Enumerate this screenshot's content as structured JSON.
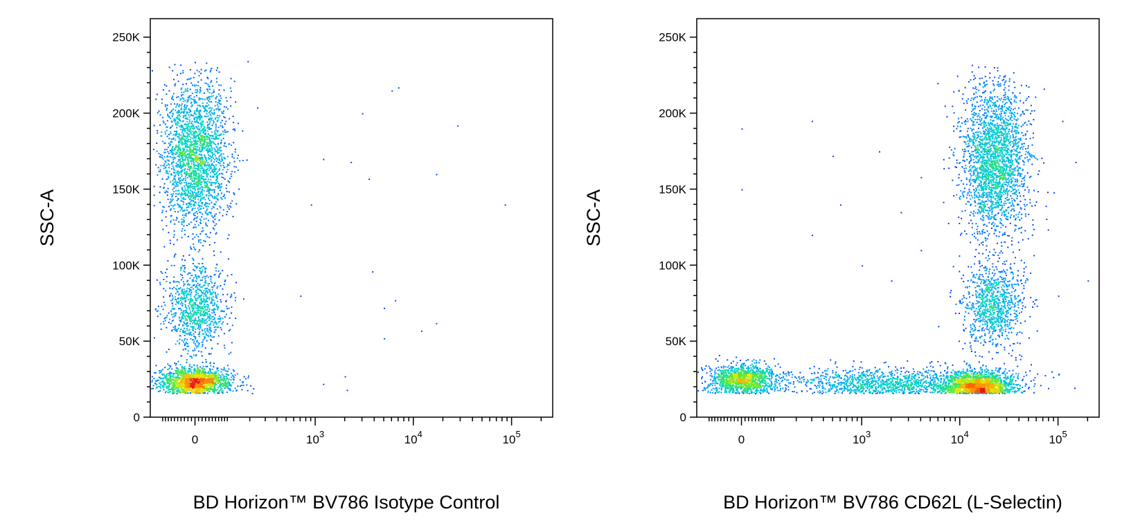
{
  "chart_data": [
    {
      "type": "scatter",
      "title": "",
      "xlabel": "BD Horizon™ BV786 Isotype Control",
      "ylabel": "SSC-A",
      "x_scale": "biexponential",
      "y_scale": "linear",
      "ylim": [
        0,
        262144
      ],
      "y_ticks": [
        {
          "value": 0,
          "label": "0"
        },
        {
          "value": 50000,
          "label": "50K"
        },
        {
          "value": 100000,
          "label": "100K"
        },
        {
          "value": 150000,
          "label": "150K"
        },
        {
          "value": 200000,
          "label": "200K"
        },
        {
          "value": 250000,
          "label": "250K"
        }
      ],
      "x_ticks": [
        {
          "value": 0,
          "label": "0"
        },
        {
          "value": 1000,
          "label": "10",
          "exp": "3"
        },
        {
          "value": 10000,
          "label": "10",
          "exp": "4"
        },
        {
          "value": 100000,
          "label": "10",
          "exp": "5"
        }
      ],
      "populations": [
        {
          "x_center": 0,
          "y_center": 23000,
          "count": 1800
        },
        {
          "x_center": 0,
          "y_center": 72000,
          "count": 1000
        },
        {
          "x_center": 0,
          "y_center": 172000,
          "count": 2400
        }
      ],
      "outliers": [
        {
          "x": 3000,
          "y": 200000
        },
        {
          "x": 6000,
          "y": 215000
        },
        {
          "x": 7000,
          "y": 217000
        },
        {
          "x": 28000,
          "y": 192000
        },
        {
          "x": 85000,
          "y": 140000
        },
        {
          "x": 17000,
          "y": 160000
        },
        {
          "x": 3500,
          "y": 157000
        },
        {
          "x": 1200,
          "y": 170000
        },
        {
          "x": 2300,
          "y": 168000
        },
        {
          "x": 3800,
          "y": 96000
        },
        {
          "x": 5000,
          "y": 72000
        },
        {
          "x": 6500,
          "y": 77000
        },
        {
          "x": 17000,
          "y": 62000
        },
        {
          "x": 5000,
          "y": 52000
        },
        {
          "x": 12000,
          "y": 57000
        },
        {
          "x": 1200,
          "y": 22000
        },
        {
          "x": 2000,
          "y": 27000
        },
        {
          "x": 2100,
          "y": 18000
        },
        {
          "x": 900,
          "y": 140000
        },
        {
          "x": 700,
          "y": 80000
        }
      ]
    },
    {
      "type": "scatter",
      "title": "",
      "xlabel": "BD Horizon™ BV786 CD62L (L-Selectin)",
      "ylabel": "SSC-A",
      "x_scale": "biexponential",
      "y_scale": "linear",
      "ylim": [
        0,
        262144
      ],
      "y_ticks": [
        {
          "value": 0,
          "label": "0"
        },
        {
          "value": 50000,
          "label": "50K"
        },
        {
          "value": 100000,
          "label": "100K"
        },
        {
          "value": 150000,
          "label": "150K"
        },
        {
          "value": 200000,
          "label": "200K"
        },
        {
          "value": 250000,
          "label": "250K"
        }
      ],
      "x_ticks": [
        {
          "value": 0,
          "label": "0"
        },
        {
          "value": 1000,
          "label": "10",
          "exp": "3"
        },
        {
          "value": 10000,
          "label": "10",
          "exp": "4"
        },
        {
          "value": 100000,
          "label": "10",
          "exp": "5"
        }
      ],
      "populations": [
        {
          "x_center": 0,
          "y_center": 25000,
          "count": 1300
        },
        {
          "x_center": 15000,
          "y_center": 20000,
          "count": 2000
        },
        {
          "x_center": 2000,
          "y_center": 22000,
          "count": 1500
        },
        {
          "x_center": 22000,
          "y_center": 75000,
          "count": 1000
        },
        {
          "x_center": 22000,
          "y_center": 170000,
          "count": 2400
        }
      ],
      "outliers": [
        {
          "x": 0,
          "y": 190000
        },
        {
          "x": 300,
          "y": 195000
        },
        {
          "x": 500,
          "y": 172000
        },
        {
          "x": 1500,
          "y": 175000
        },
        {
          "x": 600,
          "y": 140000
        },
        {
          "x": 2500,
          "y": 135000
        },
        {
          "x": 4000,
          "y": 158000
        },
        {
          "x": 90000,
          "y": 148000
        },
        {
          "x": 150000,
          "y": 168000
        },
        {
          "x": 110000,
          "y": 195000
        },
        {
          "x": 200000,
          "y": 90000
        },
        {
          "x": 100000,
          "y": 80000
        },
        {
          "x": 0,
          "y": 150000
        },
        {
          "x": 300,
          "y": 120000
        },
        {
          "x": 1000,
          "y": 100000
        },
        {
          "x": 2000,
          "y": 90000
        },
        {
          "x": 4000,
          "y": 110000
        },
        {
          "x": 6000,
          "y": 60000
        }
      ]
    }
  ]
}
